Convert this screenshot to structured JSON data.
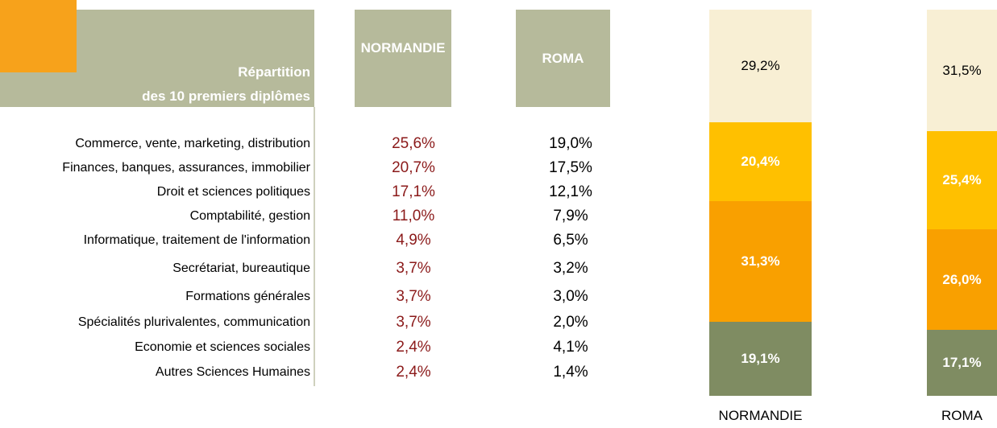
{
  "table": {
    "title": [
      "Répartition",
      "des 10 premiers diplômes"
    ],
    "columns": [
      "NORMANDIE",
      "ROMA"
    ],
    "rows": [
      [
        "Commerce, vente, marketing, distribution",
        "25,6%",
        "19,0%"
      ],
      [
        "Finances, banques, assurances, immobilier",
        "20,7%",
        "17,5%"
      ],
      [
        "Droit et sciences politiques",
        "17,1%",
        "12,1%"
      ],
      [
        "Comptabilité, gestion",
        "11,0%",
        "7,9%"
      ],
      [
        "Informatique, traitement de l'information",
        "4,9%",
        "6,5%"
      ],
      [
        "Secrétariat, bureautique",
        "3,7%",
        "3,2%"
      ],
      [
        "Formations générales",
        "3,7%",
        "3,0%"
      ],
      [
        "Spécialités plurivalentes, communication",
        "3,7%",
        "2,0%"
      ],
      [
        "Economie et sciences sociales",
        "2,4%",
        "4,1%"
      ],
      [
        "Autres Sciences Humaines",
        "2,4%",
        "1,4%"
      ]
    ]
  },
  "chart_data": {
    "type": "bar",
    "stacked": true,
    "categories": [
      "NORMANDIE",
      "ROMA"
    ],
    "ylim": [
      0,
      100
    ],
    "series": [
      {
        "color": "#7f8c62",
        "values": [
          19.1,
          17.1
        ],
        "value_labels": [
          "19,1%",
          "17,1%"
        ]
      },
      {
        "color": "#f9a000",
        "values": [
          31.3,
          26.0
        ],
        "value_labels": [
          "31,3%",
          "26,0%"
        ]
      },
      {
        "color": "#ffc000",
        "values": [
          20.4,
          25.4
        ],
        "value_labels": [
          "20,4%",
          "25,4%"
        ]
      },
      {
        "color": "#f8efd4",
        "values": [
          29.2,
          31.5
        ],
        "value_labels": [
          "29,2%",
          "31,5%"
        ]
      }
    ]
  }
}
